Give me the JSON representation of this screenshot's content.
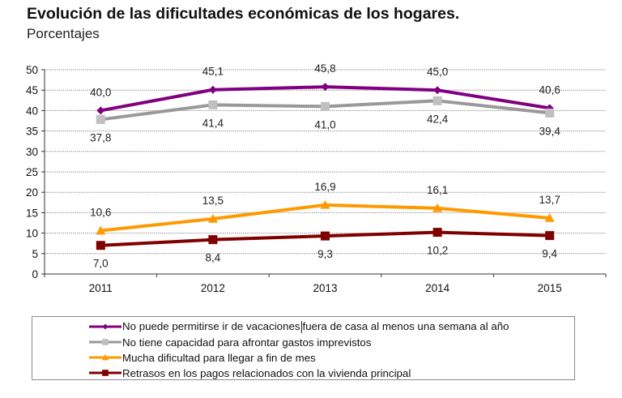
{
  "header": {
    "title": "Evolución de las dificultades económicas de los hogares.",
    "subtitle": "Porcentajes"
  },
  "chart_data": {
    "type": "line",
    "title": "Evolución de las dificultades económicas de los hogares.",
    "subtitle": "Porcentajes",
    "xlabel": "",
    "ylabel": "",
    "categories": [
      "2011",
      "2012",
      "2013",
      "2014",
      "2015"
    ],
    "ylim": [
      0,
      50
    ],
    "yticks": [
      0,
      5,
      10,
      15,
      20,
      25,
      30,
      35,
      40,
      45,
      50
    ],
    "ytick_labels": [
      "0",
      "5",
      "10",
      "15",
      "20",
      "25",
      "30",
      "35",
      "40",
      "45",
      "50"
    ],
    "grid": true,
    "legend_position": "bottom",
    "series": [
      {
        "name": "No puede permitirse ir de vacaciones fuera de casa al menos una semana al año",
        "values": [
          40.0,
          45.1,
          45.8,
          45.0,
          40.6
        ],
        "labels": [
          "40,0",
          "45,1",
          "45,8",
          "45,0",
          "40,6"
        ],
        "label_position": "above",
        "color": "#800080",
        "marker": "diamond"
      },
      {
        "name": "No tiene capacidad para afrontar gastos imprevistos",
        "values": [
          37.8,
          41.4,
          41.0,
          42.4,
          39.4
        ],
        "labels": [
          "37,8",
          "41,4",
          "41,0",
          "42,4",
          "39,4"
        ],
        "label_position": "below",
        "color": "#999999",
        "marker_color": "#c0c0c0",
        "marker": "square"
      },
      {
        "name": "Mucha dificultad para llegar a fin de mes",
        "values": [
          10.6,
          13.5,
          16.9,
          16.1,
          13.7
        ],
        "labels": [
          "10,6",
          "13,5",
          "16,9",
          "16,1",
          "13,7"
        ],
        "label_position": "above",
        "color": "#ff9900",
        "marker": "triangle"
      },
      {
        "name": "Retrasos en los pagos relacionados con la vivienda principal",
        "values": [
          7.0,
          8.4,
          9.3,
          10.2,
          9.4
        ],
        "labels": [
          "7,0",
          "8,4",
          "9,3",
          "10,2",
          "9,4"
        ],
        "label_position": "below",
        "color": "#800000",
        "marker": "square"
      }
    ]
  },
  "legend": {
    "items": [
      {
        "label_a": "No puede permitirse ir de vacaciones",
        "label_b": "fuera de casa al menos una semana al año"
      },
      {
        "label_a": "No tiene capacidad para afrontar gastos imprevistos",
        "label_b": ""
      },
      {
        "label_a": "Mucha dificultad para llegar a fin de mes",
        "label_b": ""
      },
      {
        "label_a": "Retrasos en los pagos relacionados con la vivienda principal",
        "label_b": ""
      }
    ]
  }
}
